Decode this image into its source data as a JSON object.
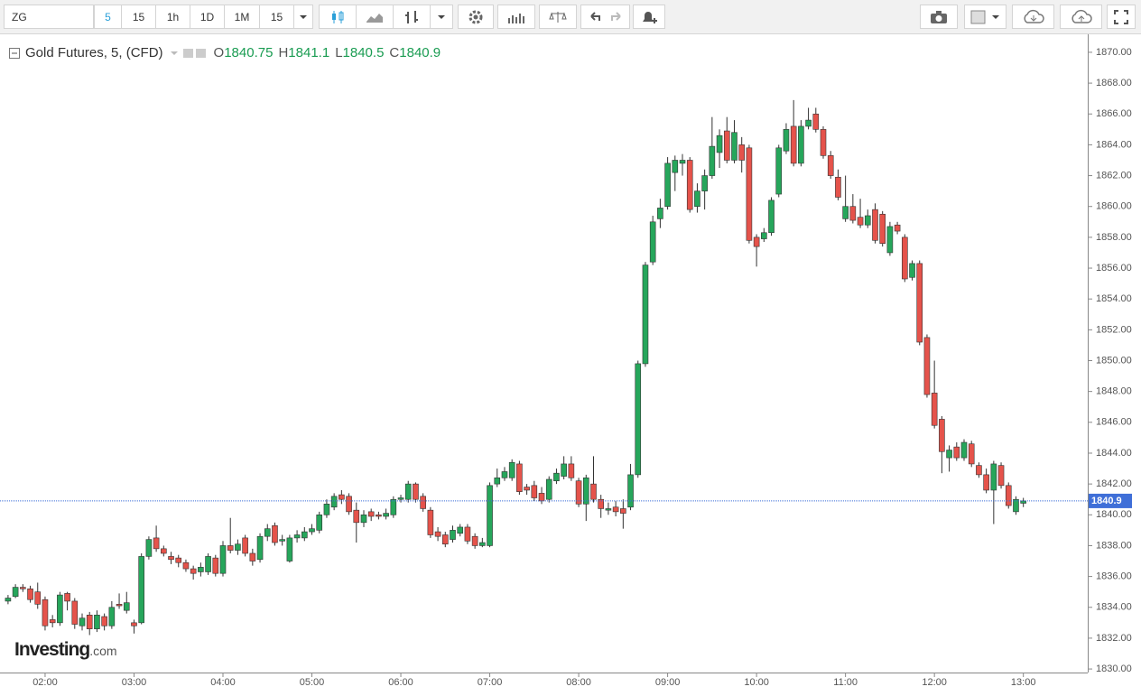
{
  "toolbar": {
    "symbol": "ZG",
    "intervals": [
      "5",
      "15",
      "1h",
      "1D",
      "1M",
      "15"
    ]
  },
  "logo": {
    "brand": "Investing",
    "suffix": ".com"
  },
  "chart_data": {
    "type": "candlestick",
    "title": "Gold Futures, 5, (CFD)",
    "ohlc_labels": [
      "O",
      "H",
      "L",
      "C"
    ],
    "up_color": "#26a65b",
    "down_color": "#e5534b",
    "last_price_color": "#3f6fd8",
    "grid": false,
    "ylim": [
      1829.77,
      1871.05
    ],
    "yticks": [
      {
        "value": 1830,
        "label": "1830.00"
      },
      {
        "value": 1832,
        "label": "1832.00"
      },
      {
        "value": 1834,
        "label": "1834.00"
      },
      {
        "value": 1836,
        "label": "1836.00"
      },
      {
        "value": 1838,
        "label": "1838.00"
      },
      {
        "value": 1840,
        "label": "1840.00"
      },
      {
        "value": 1842,
        "label": "1842.00"
      },
      {
        "value": 1844,
        "label": "1844.00"
      },
      {
        "value": 1846,
        "label": "1846.00"
      },
      {
        "value": 1848,
        "label": "1848.00"
      },
      {
        "value": 1850,
        "label": "1850.00"
      },
      {
        "value": 1852,
        "label": "1852.00"
      },
      {
        "value": 1854,
        "label": "1854.00"
      },
      {
        "value": 1856,
        "label": "1856.00"
      },
      {
        "value": 1858,
        "label": "1858.00"
      },
      {
        "value": 1860,
        "label": "1860.00"
      },
      {
        "value": 1862,
        "label": "1862.00"
      },
      {
        "value": 1864,
        "label": "1864.00"
      },
      {
        "value": 1866,
        "label": "1866.00"
      },
      {
        "value": 1868,
        "label": "1868.00"
      },
      {
        "value": 1870,
        "label": "1870.00"
      }
    ],
    "categories": [
      null,
      null,
      null,
      null,
      null,
      "02:00",
      null,
      null,
      null,
      null,
      null,
      null,
      null,
      null,
      null,
      null,
      null,
      "03:00",
      null,
      null,
      null,
      null,
      null,
      null,
      null,
      null,
      null,
      null,
      null,
      "04:00",
      null,
      null,
      null,
      null,
      null,
      null,
      null,
      null,
      null,
      null,
      null,
      "05:00",
      null,
      null,
      null,
      null,
      null,
      null,
      null,
      null,
      null,
      null,
      null,
      "06:00",
      null,
      null,
      null,
      null,
      null,
      null,
      null,
      null,
      null,
      null,
      null,
      "07:00",
      null,
      null,
      null,
      null,
      null,
      null,
      null,
      null,
      null,
      null,
      null,
      "08:00",
      null,
      null,
      null,
      null,
      null,
      null,
      null,
      null,
      null,
      null,
      null,
      "09:00",
      null,
      null,
      null,
      null,
      null,
      null,
      null,
      null,
      null,
      null,
      null,
      "10:00",
      null,
      null,
      null,
      null,
      null,
      null,
      null,
      null,
      null,
      null,
      null,
      "11:00",
      null,
      null,
      null,
      null,
      null,
      null,
      null,
      null,
      null,
      null,
      null,
      "12:00",
      null,
      null,
      null,
      null,
      null,
      null,
      null,
      null,
      null,
      null,
      null,
      "13:00"
    ],
    "open": [
      1834.4,
      1834.7,
      1835.3,
      1835.2,
      1835.0,
      1834.5,
      1833.2,
      1833.0,
      1834.9,
      1834.4,
      1832.8,
      1833.5,
      1832.6,
      1833.4,
      1832.8,
      1834.2,
      1833.8,
      1833.0,
      1833.0,
      1837.3,
      1838.5,
      1837.8,
      1837.3,
      1837.2,
      1836.9,
      1836.5,
      1836.3,
      1836.3,
      1837.2,
      1836.2,
      1838.0,
      1837.7,
      1838.5,
      1837.5,
      1837.1,
      1838.6,
      1839.3,
      1838.3,
      1837.0,
      1838.5,
      1838.5,
      1838.9,
      1839.0,
      1840.0,
      1840.5,
      1841.3,
      1841.2,
      1840.3,
      1839.5,
      1840.2,
      1840.0,
      1839.9,
      1840.0,
      1841.0,
      1841.0,
      1842.0,
      1841.2,
      1840.3,
      1838.9,
      1838.7,
      1838.4,
      1838.8,
      1839.2,
      1838.6,
      1838.0,
      1838.0,
      1842.0,
      1842.4,
      1842.4,
      1843.3,
      1841.8,
      1841.9,
      1841.4,
      1841.0,
      1842.2,
      1842.5,
      1843.3,
      1842.2,
      1840.7,
      1842.0,
      1841.0,
      1840.3,
      1840.5,
      1840.4,
      1840.5,
      1842.6,
      1849.8,
      1856.4,
      1859.2,
      1860.0,
      1862.2,
      1862.8,
      1863.0,
      1860.0,
      1861.0,
      1862.0,
      1863.5,
      1864.9,
      1863.0,
      1864.0,
      1863.8,
      1858.0,
      1857.9,
      1858.3,
      1860.8,
      1863.6,
      1865.2,
      1862.8,
      1865.2,
      1866.0,
      1865.0,
      1863.3,
      1861.9,
      1859.2,
      1860.0,
      1859.3,
      1858.8,
      1859.8,
      1859.5,
      1857.0,
      1858.8,
      1858.0,
      1855.4,
      1856.3,
      1851.5,
      1847.9,
      1846.2,
      1843.7,
      1844.4,
      1843.7,
      1844.6,
      1843.2,
      1842.6,
      1841.6,
      1843.2,
      1841.9,
      1840.2,
      1840.75
    ],
    "high": [
      1834.8,
      1835.5,
      1835.5,
      1835.4,
      1835.6,
      1834.7,
      1833.5,
      1835.0,
      1835.0,
      1834.6,
      1833.6,
      1833.7,
      1833.8,
      1833.6,
      1834.4,
      1834.9,
      1835.0,
      1833.2,
      1837.5,
      1838.6,
      1839.3,
      1838.0,
      1837.6,
      1837.4,
      1837.1,
      1836.7,
      1836.9,
      1837.5,
      1837.4,
      1838.3,
      1839.8,
      1838.4,
      1838.7,
      1837.8,
      1838.8,
      1839.4,
      1839.5,
      1838.7,
      1838.7,
      1839.0,
      1839.2,
      1839.4,
      1840.2,
      1841.0,
      1841.4,
      1841.6,
      1841.4,
      1840.8,
      1840.3,
      1840.4,
      1840.2,
      1840.4,
      1841.2,
      1841.3,
      1842.2,
      1842.1,
      1841.4,
      1840.5,
      1839.2,
      1838.9,
      1839.3,
      1839.4,
      1839.4,
      1838.8,
      1838.5,
      1842.1,
      1843.0,
      1843.1,
      1843.6,
      1843.5,
      1842.0,
      1842.2,
      1841.8,
      1842.5,
      1843.0,
      1843.8,
      1843.8,
      1842.4,
      1842.6,
      1843.8,
      1841.3,
      1840.8,
      1840.9,
      1841.0,
      1843.3,
      1850.0,
      1856.4,
      1859.4,
      1860.5,
      1863.2,
      1863.3,
      1863.4,
      1863.2,
      1861.5,
      1862.4,
      1865.8,
      1865.0,
      1865.8,
      1865.6,
      1864.5,
      1864.0,
      1858.2,
      1858.6,
      1860.6,
      1864.0,
      1865.4,
      1866.9,
      1865.6,
      1866.4,
      1866.4,
      1865.2,
      1863.6,
      1862.4,
      1862.0,
      1860.8,
      1860.5,
      1859.8,
      1860.2,
      1859.7,
      1859.0,
      1859.0,
      1858.2,
      1856.5,
      1856.5,
      1851.7,
      1850.0,
      1846.4,
      1844.5,
      1844.7,
      1844.9,
      1844.8,
      1843.4,
      1843.0,
      1843.5,
      1843.4,
      1842.1,
      1841.2,
      1841.1
    ],
    "low": [
      1834.2,
      1834.6,
      1835.0,
      1834.3,
      1833.9,
      1832.5,
      1832.7,
      1832.8,
      1833.8,
      1832.6,
      1832.5,
      1832.2,
      1832.4,
      1832.5,
      1832.6,
      1833.9,
      1833.6,
      1832.3,
      1832.9,
      1837.1,
      1837.6,
      1837.3,
      1836.8,
      1836.6,
      1836.3,
      1835.8,
      1836.0,
      1836.1,
      1836.0,
      1836.0,
      1837.5,
      1837.4,
      1837.3,
      1836.7,
      1836.9,
      1838.3,
      1838.0,
      1838.0,
      1836.9,
      1838.2,
      1838.3,
      1838.7,
      1838.8,
      1839.8,
      1840.3,
      1840.7,
      1840.0,
      1838.2,
      1839.2,
      1839.6,
      1839.7,
      1839.7,
      1839.8,
      1840.8,
      1840.8,
      1840.8,
      1840.2,
      1838.5,
      1838.3,
      1837.9,
      1838.2,
      1838.6,
      1838.1,
      1837.8,
      1837.9,
      1837.9,
      1841.8,
      1842.2,
      1842.2,
      1841.3,
      1841.3,
      1840.9,
      1840.7,
      1840.8,
      1842.0,
      1842.3,
      1842.2,
      1840.5,
      1839.6,
      1840.8,
      1839.8,
      1840.0,
      1839.9,
      1839.1,
      1840.3,
      1842.4,
      1849.6,
      1856.2,
      1858.6,
      1859.8,
      1861.0,
      1862.0,
      1859.6,
      1859.6,
      1859.8,
      1861.8,
      1862.5,
      1862.8,
      1862.8,
      1862.2,
      1857.6,
      1856.1,
      1857.7,
      1858.1,
      1860.6,
      1863.4,
      1862.6,
      1862.6,
      1865.0,
      1864.8,
      1863.1,
      1861.8,
      1860.4,
      1859.0,
      1858.9,
      1858.6,
      1858.6,
      1857.6,
      1857.4,
      1856.8,
      1858.2,
      1855.1,
      1855.2,
      1851.0,
      1847.6,
      1845.6,
      1842.7,
      1842.8,
      1843.5,
      1843.5,
      1843.1,
      1842.4,
      1841.4,
      1839.4,
      1841.7,
      1840.4,
      1840.0,
      1840.5
    ],
    "close": [
      1834.6,
      1835.3,
      1835.2,
      1834.5,
      1834.2,
      1832.8,
      1833.0,
      1834.8,
      1834.4,
      1832.9,
      1833.3,
      1832.6,
      1833.5,
      1832.8,
      1834.0,
      1834.1,
      1834.3,
      1832.8,
      1837.3,
      1838.4,
      1837.8,
      1837.5,
      1837.1,
      1836.9,
      1836.5,
      1836.2,
      1836.6,
      1837.3,
      1836.2,
      1838.0,
      1837.7,
      1838.1,
      1837.5,
      1837.0,
      1838.6,
      1839.1,
      1838.2,
      1838.4,
      1838.5,
      1838.7,
      1838.9,
      1839.1,
      1840.0,
      1840.7,
      1841.2,
      1841.0,
      1840.2,
      1839.5,
      1840.0,
      1839.9,
      1839.9,
      1840.1,
      1841.0,
      1841.1,
      1842.0,
      1841.0,
      1840.4,
      1838.7,
      1838.6,
      1838.1,
      1839.0,
      1839.2,
      1838.3,
      1838.0,
      1838.2,
      1841.9,
      1842.4,
      1842.8,
      1843.4,
      1841.5,
      1841.6,
      1841.1,
      1840.9,
      1842.3,
      1842.7,
      1843.3,
      1842.4,
      1840.7,
      1842.4,
      1841.0,
      1840.4,
      1840.4,
      1840.2,
      1840.1,
      1842.6,
      1849.8,
      1856.2,
      1859.0,
      1859.9,
      1862.8,
      1863.0,
      1863.0,
      1859.8,
      1861.0,
      1862.0,
      1863.9,
      1864.6,
      1863.0,
      1864.8,
      1863.0,
      1857.8,
      1857.4,
      1858.3,
      1860.4,
      1863.8,
      1865.0,
      1862.8,
      1865.2,
      1865.6,
      1865.0,
      1863.3,
      1862.0,
      1860.6,
      1860.0,
      1859.1,
      1858.8,
      1859.4,
      1857.8,
      1857.6,
      1858.7,
      1858.4,
      1855.3,
      1856.3,
      1851.2,
      1847.8,
      1845.8,
      1844.1,
      1844.2,
      1843.7,
      1844.7,
      1843.3,
      1842.6,
      1841.6,
      1843.3,
      1841.9,
      1840.6,
      1841.0,
      1840.9
    ]
  }
}
